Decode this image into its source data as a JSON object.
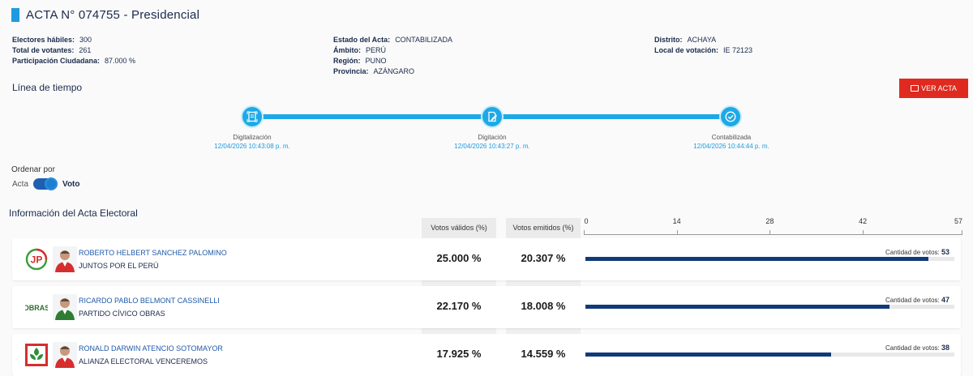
{
  "acta": {
    "title": "ACTA N° 074755 - Presidencial"
  },
  "info": {
    "col1": [
      {
        "k": "Electores hábiles:",
        "v": "300"
      },
      {
        "k": "Total de votantes:",
        "v": "261"
      },
      {
        "k": "Participación Ciudadana:",
        "v": "87.000 %"
      }
    ],
    "col2": [
      {
        "k": "Estado del Acta:",
        "v": "CONTABILIZADA"
      },
      {
        "k": "Ámbito:",
        "v": "PERÚ"
      },
      {
        "k": "Región:",
        "v": "PUNO"
      },
      {
        "k": "Provincia:",
        "v": "AZÁNGARO"
      }
    ],
    "col3": [
      {
        "k": "Distrito:",
        "v": "ACHAYA"
      },
      {
        "k": "Local de votación:",
        "v": "IE 72123"
      }
    ]
  },
  "timeline": {
    "heading": "Línea de tiempo",
    "ver_acta_label": "VER ACTA",
    "steps": [
      {
        "name": "Digitalización",
        "time": "12/04/2026 10:43:08 p. m.",
        "icon": "document-scan-icon"
      },
      {
        "name": "Digitación",
        "time": "12/04/2026 10:43:27 p. m.",
        "icon": "document-edit-icon"
      },
      {
        "name": "Contabilizada",
        "time": "12/04/2026 10:44:44 p. m.",
        "icon": "check-circle-icon"
      }
    ]
  },
  "order": {
    "label": "Ordenar por",
    "option_left": "Acta",
    "option_right": "Voto",
    "selected": "Voto"
  },
  "electoral": {
    "heading": "Información del Acta Electoral",
    "col_validos": "Votos válidos (%)",
    "col_emitidos": "Votos emitidos (%)",
    "count_label": "Cantidad de votos:",
    "axis_ticks": [
      "0",
      "14",
      "28",
      "42",
      "57"
    ],
    "axis_max": 57,
    "rows": [
      {
        "candidate": "ROBERTO HELBERT SANCHEZ PALOMINO",
        "party": "JUNTOS POR EL PERÚ",
        "validos": "25.000 %",
        "emitidos": "20.307 %",
        "votes": 53,
        "votes_label": "53",
        "logo": "jp-logo",
        "accent": "#d62e2e"
      },
      {
        "candidate": "RICARDO PABLO BELMONT CASSINELLI",
        "party": "PARTIDO CÍVICO OBRAS",
        "validos": "22.170 %",
        "emitidos": "18.008 %",
        "votes": 47,
        "votes_label": "47",
        "logo": "obras-logo",
        "accent": "#2f7d32"
      },
      {
        "candidate": "RONALD DARWIN ATENCIO SOTOMAYOR",
        "party": "ALIANZA ELECTORAL VENCEREMOS",
        "validos": "17.925 %",
        "emitidos": "14.559 %",
        "votes": 38,
        "votes_label": "38",
        "logo": "venceremos-logo",
        "accent": "#d62e2e"
      }
    ]
  },
  "colors": {
    "accent_blue": "#1ea9e6",
    "bar_blue": "#123a7a",
    "button_red": "#e02a1f"
  }
}
